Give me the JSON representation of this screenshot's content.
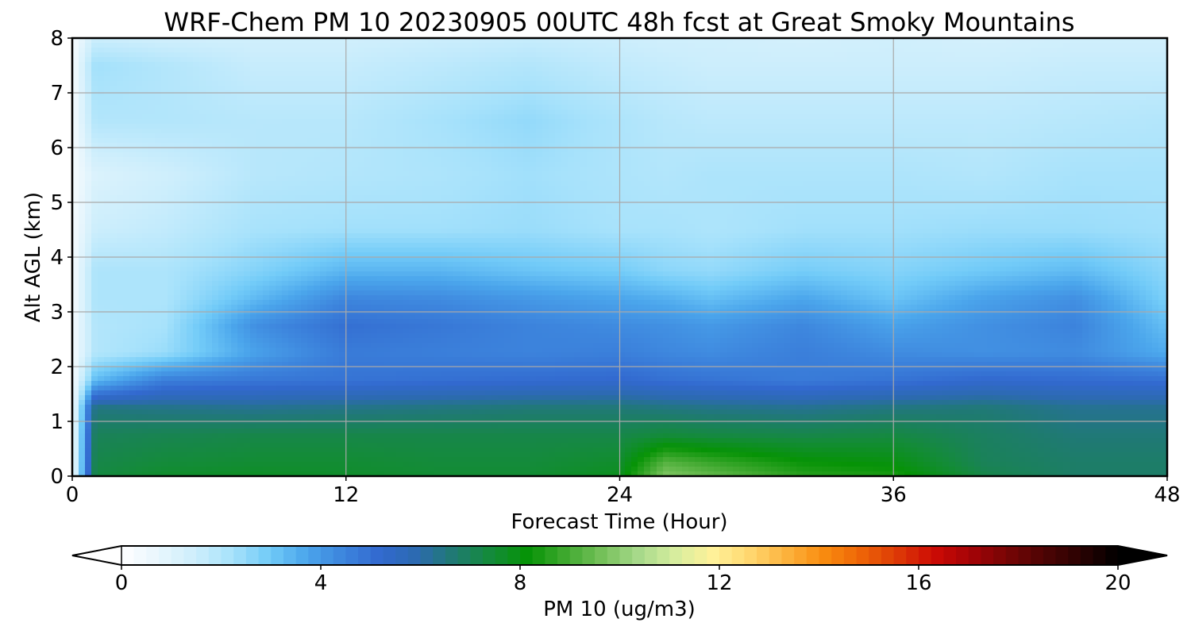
{
  "chart_data": {
    "type": "heatmap",
    "title": "WRF-Chem PM 10  20230905 00UTC 48h fcst at Great Smoky Mountains",
    "xlabel": "Forecast Time (Hour)",
    "ylabel": "Alt AGL (km)",
    "xlim": [
      0,
      48
    ],
    "ylim": [
      0,
      8
    ],
    "xticks": [
      "0",
      "12",
      "24",
      "36",
      "48"
    ],
    "yticks": [
      "0",
      "1",
      "2",
      "3",
      "4",
      "5",
      "6",
      "7",
      "8"
    ],
    "grid": true,
    "x": [
      0,
      1,
      4,
      8,
      12,
      16,
      20,
      24,
      26,
      28,
      32,
      36,
      40,
      44,
      48
    ],
    "y": [
      0,
      0.25,
      0.75,
      1.25,
      1.75,
      2.25,
      2.75,
      3.25,
      3.75,
      4.5,
      5.5,
      6.5,
      7.5,
      8
    ],
    "values": [
      [
        0.3,
        7.3,
        7.6,
        7.7,
        7.6,
        7.5,
        7.5,
        7.8,
        9.8,
        9.4,
        8.6,
        8.4,
        7.2,
        6.8,
        6.8
      ],
      [
        0.3,
        7.2,
        7.4,
        7.5,
        7.5,
        7.4,
        7.4,
        7.6,
        9.2,
        8.8,
        8.2,
        8.0,
        7.0,
        6.8,
        6.8
      ],
      [
        0.3,
        7.0,
        7.1,
        7.2,
        7.2,
        7.2,
        7.2,
        7.2,
        7.4,
        7.3,
        7.2,
        7.3,
        6.9,
        6.6,
        6.6
      ],
      [
        0.3,
        6.5,
        6.4,
        6.3,
        6.4,
        6.5,
        6.6,
        6.6,
        6.5,
        6.4,
        6.3,
        6.5,
        6.6,
        6.3,
        6.3
      ],
      [
        0.3,
        3.3,
        4.6,
        4.8,
        4.9,
        5.0,
        5.1,
        5.2,
        5.0,
        4.9,
        4.7,
        4.9,
        5.2,
        5.1,
        5.0
      ],
      [
        0.3,
        2.0,
        2.4,
        3.8,
        4.7,
        4.6,
        4.5,
        4.6,
        4.4,
        4.3,
        4.6,
        4.3,
        4.2,
        4.3,
        3.6
      ],
      [
        0.3,
        2.0,
        2.2,
        4.2,
        5.0,
        4.8,
        4.5,
        4.3,
        4.2,
        4.0,
        4.4,
        3.8,
        4.2,
        4.5,
        3.2
      ],
      [
        0.3,
        2.1,
        2.1,
        3.3,
        4.4,
        4.3,
        4.0,
        3.7,
        3.5,
        3.2,
        3.7,
        3.1,
        3.8,
        4.2,
        2.8
      ],
      [
        0.3,
        2.1,
        2.1,
        2.7,
        3.4,
        3.4,
        3.1,
        2.9,
        2.6,
        2.5,
        2.9,
        2.7,
        3.0,
        3.3,
        2.6
      ],
      [
        0.3,
        1.5,
        1.7,
        2.2,
        2.3,
        2.3,
        2.4,
        2.2,
        2.2,
        2.1,
        2.3,
        2.3,
        2.4,
        2.4,
        2.3
      ],
      [
        0.3,
        1.1,
        1.4,
        1.9,
        2.0,
        2.1,
        2.3,
        2.1,
        2.0,
        2.1,
        2.1,
        2.1,
        2.0,
        2.2,
        2.2
      ],
      [
        0.3,
        2.0,
        2.0,
        1.9,
        1.9,
        2.2,
        2.5,
        2.1,
        1.9,
        1.8,
        1.8,
        1.8,
        1.8,
        1.9,
        2.0
      ],
      [
        0.3,
        2.3,
        2.0,
        1.6,
        1.6,
        1.8,
        2.0,
        1.7,
        1.6,
        1.5,
        1.5,
        1.5,
        1.5,
        1.6,
        1.6
      ],
      [
        0.3,
        1.5,
        1.4,
        1.4,
        1.4,
        1.5,
        1.6,
        1.5,
        1.4,
        1.4,
        1.3,
        1.4,
        1.3,
        1.4,
        1.4
      ]
    ],
    "colorbar": {
      "label": "PM 10  (ug/m3)",
      "min": 0,
      "max": 20,
      "ticks": [
        "0",
        "4",
        "8",
        "12",
        "16",
        "20"
      ],
      "extend": "both",
      "colors": [
        "#ffffff",
        "#e8f6fd",
        "#cdeefc",
        "#a7e2fb",
        "#72cbf8",
        "#4ba6ec",
        "#3d85dd",
        "#3269cf",
        "#2c6ab0",
        "#1f7a72",
        "#148b3a",
        "#069306",
        "#3ea82e",
        "#74c059",
        "#a7d98a",
        "#d6ed9e",
        "#fff29a",
        "#ffd870",
        "#fcb33e",
        "#f98d10",
        "#ee6607",
        "#dd3a06",
        "#cd0b05",
        "#a40306",
        "#770505",
        "#4d0404",
        "#2a0202",
        "#000000"
      ]
    }
  }
}
